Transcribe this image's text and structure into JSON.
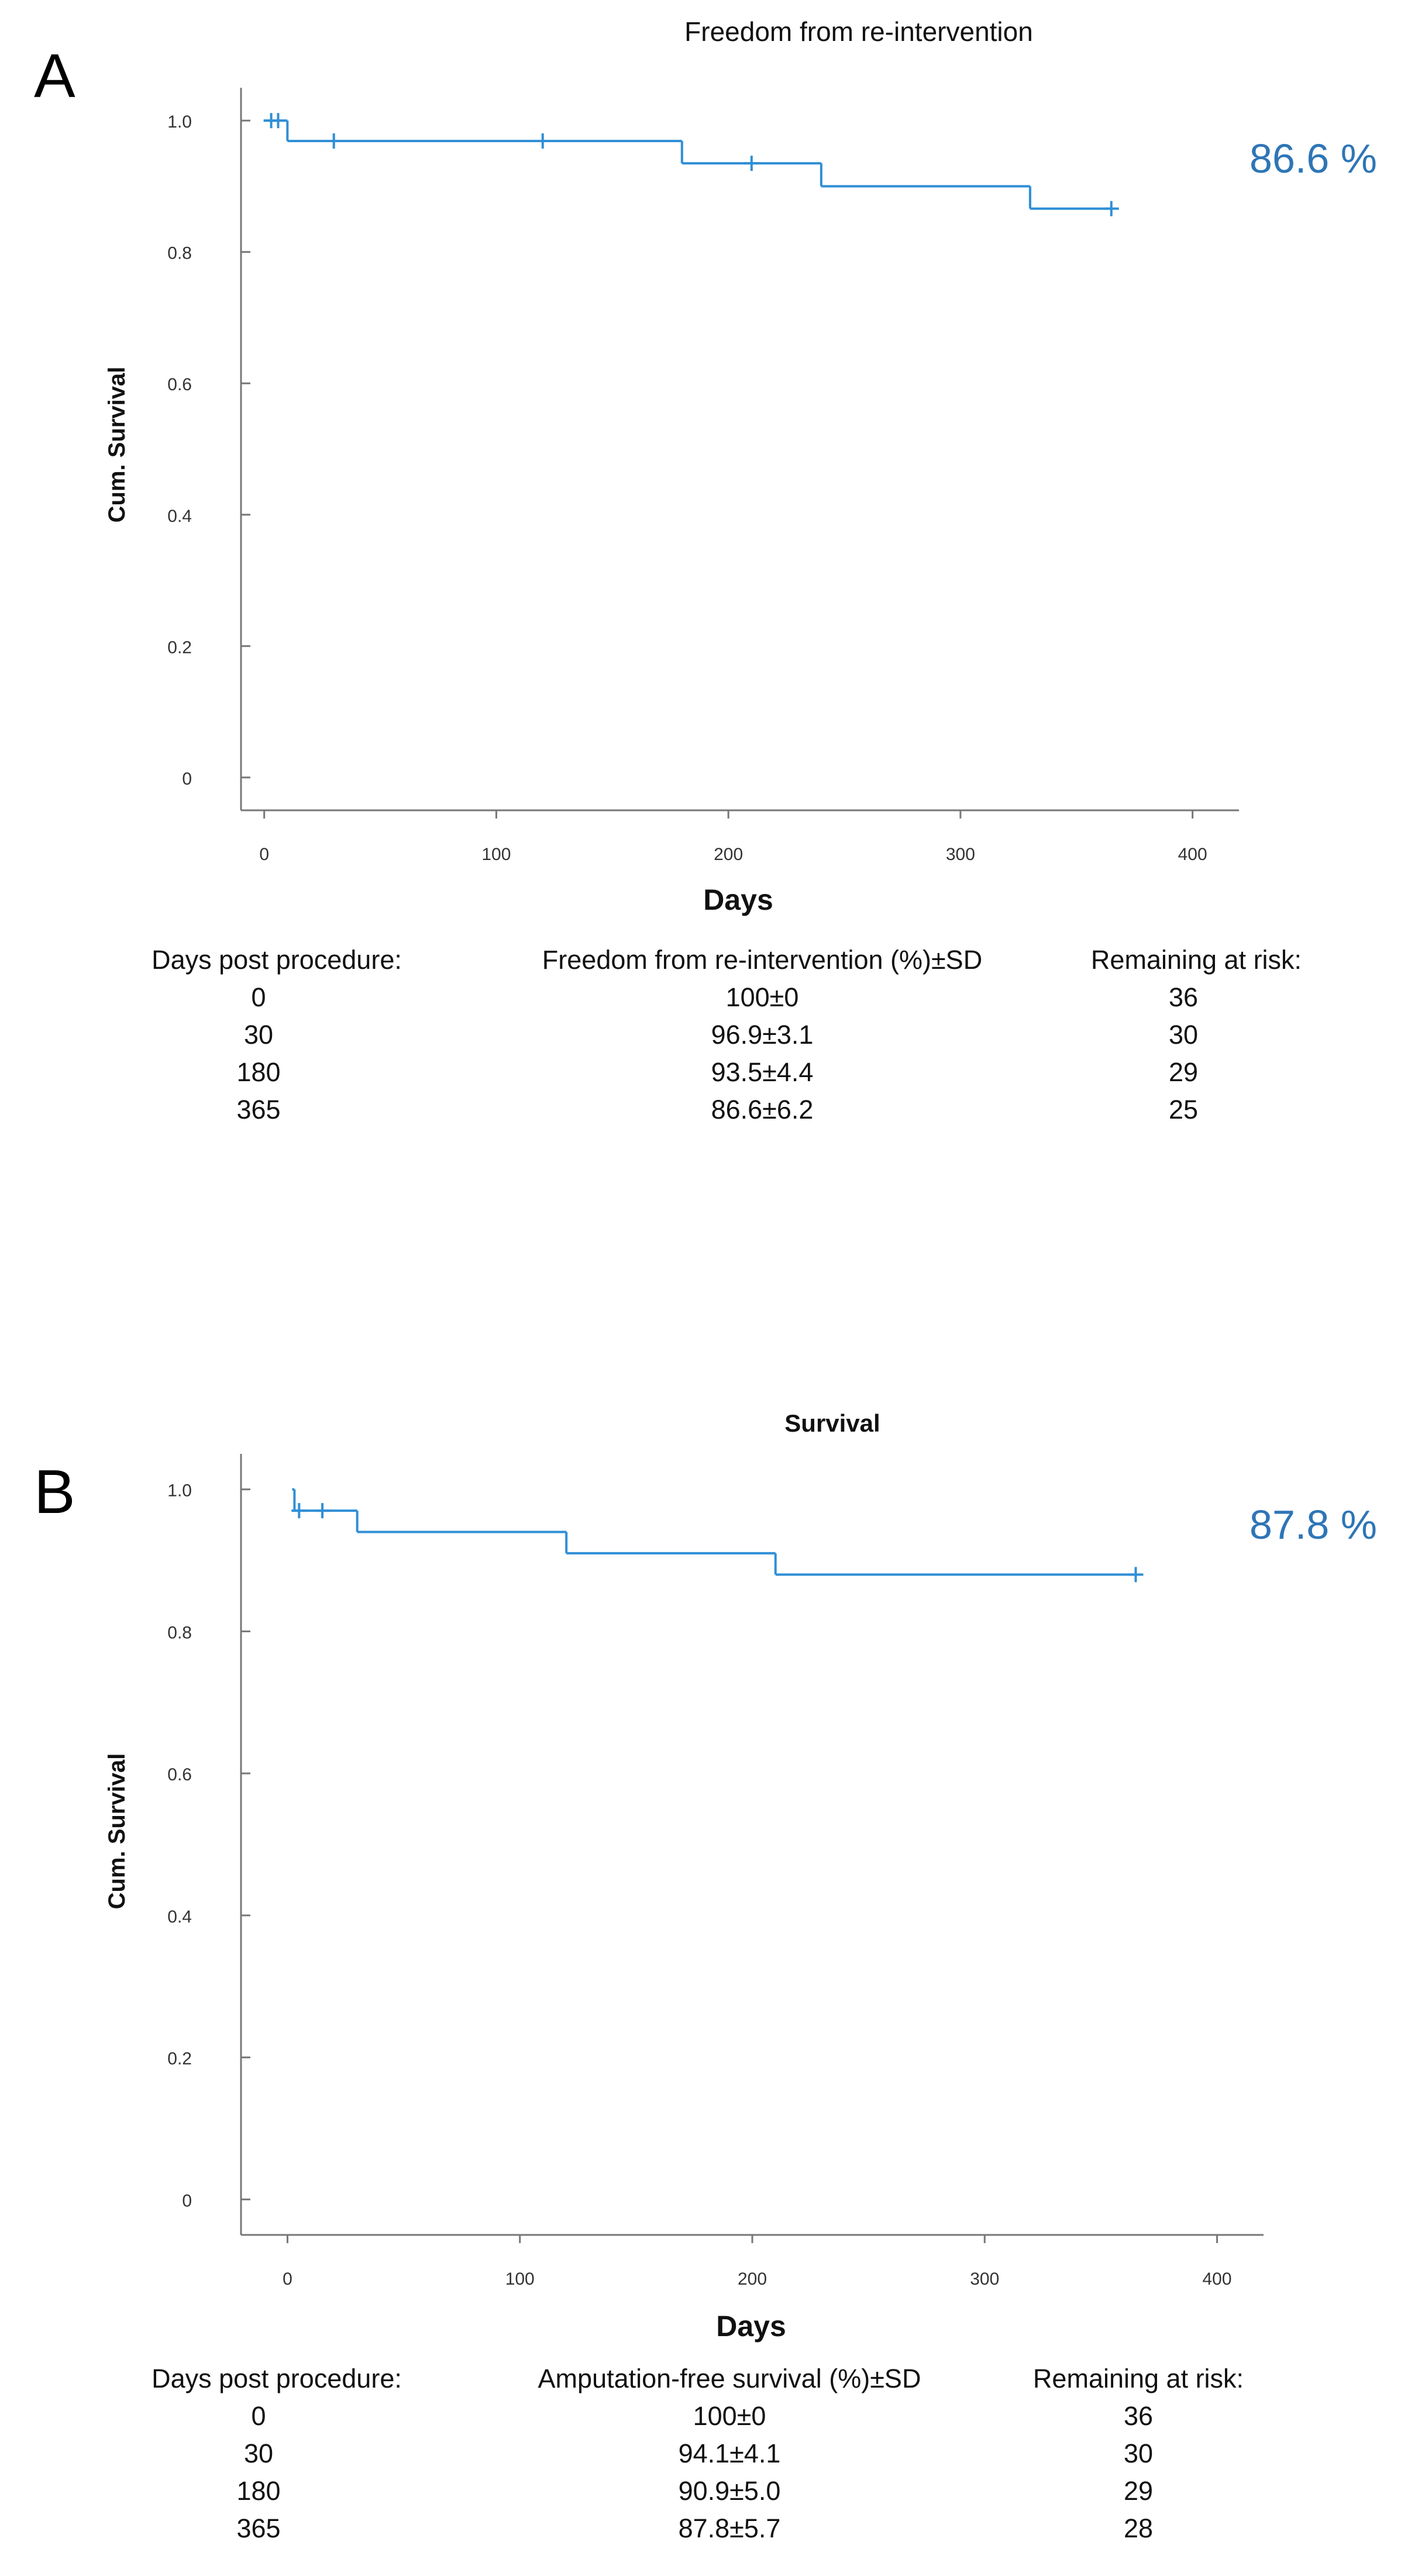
{
  "colors": {
    "curve": "#2f8fd6",
    "censor": "#2f8fd6",
    "final_label": "#2e75b6",
    "axis": "#777777",
    "text": "#111111"
  },
  "chart_data": [
    {
      "panel": "A",
      "type": "line",
      "subtype": "kaplan-meier-step",
      "title": "Freedom from re-intervention",
      "xlabel": "Days",
      "ylabel": "Cum. Survival",
      "xlim": [
        -10,
        420
      ],
      "ylim": [
        -0.05,
        1.05
      ],
      "xticks": [
        0,
        100,
        200,
        300,
        400
      ],
      "yticks": [
        0,
        0.2,
        0.4,
        0.6,
        0.8,
        1.0
      ],
      "ytick_labels": [
        "0",
        "0.2",
        "0.4",
        "0.6",
        "0.8",
        "1.0"
      ],
      "steps": [
        [
          0,
          1.0
        ],
        [
          10,
          0.969
        ],
        [
          180,
          0.935
        ],
        [
          240,
          0.9
        ],
        [
          330,
          0.866
        ],
        [
          365,
          0.866
        ]
      ],
      "censors": [
        [
          3,
          1.0
        ],
        [
          6,
          1.0
        ],
        [
          30,
          0.969
        ],
        [
          120,
          0.969
        ],
        [
          210,
          0.935
        ],
        [
          365,
          0.866
        ]
      ],
      "final_label": "86.6 %",
      "table": {
        "headers": [
          "Days post procedure:",
          "Freedom from re-intervention (%)±SD",
          "Remaining at risk:"
        ],
        "rows": [
          [
            "0",
            "100±0",
            "36"
          ],
          [
            "30",
            "96.9±3.1",
            "30"
          ],
          [
            "180",
            "93.5±4.4",
            "29"
          ],
          [
            "365",
            "86.6±6.2",
            "25"
          ]
        ]
      }
    },
    {
      "panel": "B",
      "type": "line",
      "subtype": "kaplan-meier-step",
      "title": "Survival",
      "xlabel": "Days",
      "ylabel": "Cum. Survival",
      "xlim": [
        -20,
        420
      ],
      "ylim": [
        -0.05,
        1.05
      ],
      "xticks": [
        0,
        100,
        200,
        300,
        400
      ],
      "yticks": [
        0,
        0.2,
        0.4,
        0.6,
        0.8,
        1.0
      ],
      "ytick_labels": [
        "0",
        "0.2",
        "0.4",
        "0.6",
        "0.8",
        "1.0"
      ],
      "steps": [
        [
          2,
          1.0
        ],
        [
          3,
          0.97
        ],
        [
          30,
          0.94
        ],
        [
          120,
          0.91
        ],
        [
          210,
          0.88
        ],
        [
          365,
          0.88
        ]
      ],
      "censors": [
        [
          5,
          0.97
        ],
        [
          15,
          0.97
        ],
        [
          365,
          0.88
        ]
      ],
      "final_label": "87.8 %",
      "table": {
        "headers": [
          "Days post procedure:",
          "Amputation-free survival (%)±SD",
          "Remaining at risk:"
        ],
        "rows": [
          [
            "0",
            "100±0",
            "36"
          ],
          [
            "30",
            "94.1±4.1",
            "30"
          ],
          [
            "180",
            "90.9±5.0",
            "29"
          ],
          [
            "365",
            "87.8±5.7",
            "28"
          ]
        ]
      }
    }
  ]
}
